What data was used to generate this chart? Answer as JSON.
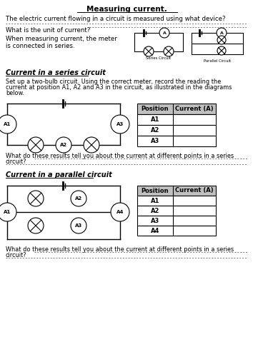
{
  "title": "Measuring current.",
  "bg_color": "#ffffff",
  "font_color": "#000000",
  "q1": "The electric current flowing in a circuit is measured using what device?",
  "q2": "What is the unit of current?",
  "q3_text1": "When measuring current, the meter",
  "q3_text2": "is connected in series.",
  "series_section_title": "Current in a series circuit",
  "series_desc1": "Set up a two-bulb circuit. Using the correct meter, record the reading the",
  "series_desc2": "current at position A1, A2 and A3 in the circuit, as illustrated in the diagrams",
  "series_desc3": "below.",
  "series_positions": [
    "A1",
    "A2",
    "A3"
  ],
  "series_question1": "What do these results tell you about the current at different points in a series",
  "series_question2": "circuit?",
  "parallel_section_title": "Current in a parallel circuit",
  "parallel_positions": [
    "A1",
    "A2",
    "A3",
    "A4"
  ],
  "parallel_question1": "What do these results tell you about the current at different points in a series",
  "parallel_question2": "circuit?",
  "table_header_color": "#c0c0c0",
  "dash_color": "#777777"
}
